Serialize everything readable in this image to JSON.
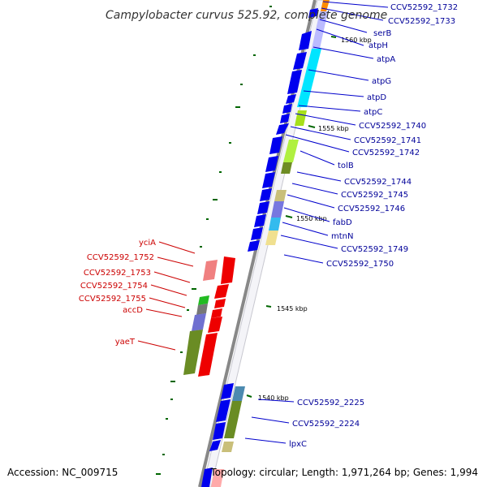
{
  "title": "Campylobacter curvus 525.92, complete genome",
  "footer": {
    "accession": "Accession: NC_009715",
    "topology": "Topology: circular; Length: 1,971,264 bp; Genes: 1,994"
  },
  "kbp_marks": {
    "k1560": "1560 kbp",
    "k1555": "1555 kbp",
    "k1550": "1550 kbp",
    "k1545": "1545 kbp",
    "k1540": "1540 kbp"
  },
  "gene_labels_right": [
    "CCV52592_1732",
    "CCV52592_1733",
    "serB",
    "atpH",
    "atpA",
    "atpG",
    "atpD",
    "atpC",
    "CCV52592_1740",
    "CCV52592_1741",
    "CCV52592_1742",
    "tolB",
    "CCV52592_1744",
    "CCV52592_1745",
    "CCV52592_1746",
    "fabD",
    "mtnN",
    "CCV52592_1749",
    "CCV52592_1750",
    "CCV52592_2225",
    "CCV52592_2224",
    "lpxC"
  ],
  "gene_labels_left": [
    "yciA",
    "CCV52592_1752",
    "CCV52592_1753",
    "CCV52592_1754",
    "CCV52592_1755",
    "accD",
    "yaeT"
  ],
  "colors": {
    "forward": "#0000ee",
    "reverse": "#ee0000",
    "label_right": "#000099",
    "label_left": "#cc0000",
    "tick": "#006600",
    "backbone": "#888888"
  }
}
